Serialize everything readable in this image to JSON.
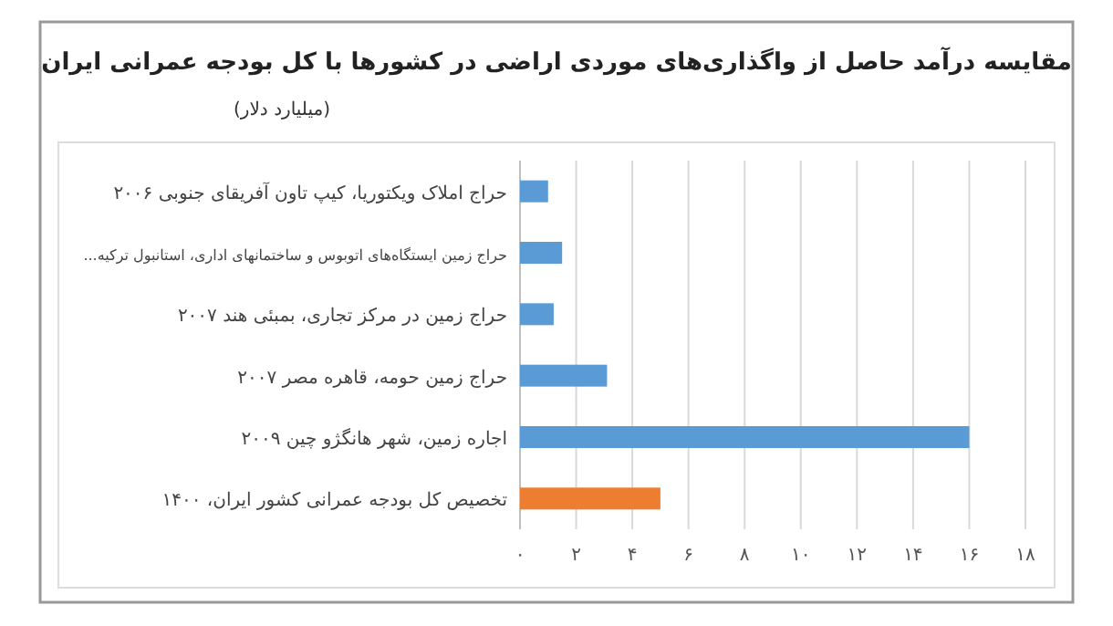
{
  "chart_data": {
    "type": "bar",
    "orientation": "horizontal",
    "title": "مقایسه درآمد حاصل از واگذاری‌های موردی اراضی در کشورها با کل بودجه عمرانی ایران",
    "subtitle": "(میلیارد دلار)",
    "categories": [
      "حراج املاک ویکتوریا، کیپ تاون آفریقای جنوبی ۲۰۰۶",
      "حراج زمین ایستگاه‌های اتوبوس و ساختمانهای اداری، استانبول ترکیه...",
      "حراج زمین در مرکز تجاری، بمبئی هند ۲۰۰۷",
      "حراج زمین حومه، قاهره مصر ۲۰۰۷",
      "اجاره زمین، شهر هانگژو چین ۲۰۰۹",
      "تخصیص کل بودجه عمرانی کشور ایران، ۱۴۰۰"
    ],
    "values": [
      1.0,
      1.5,
      1.2,
      3.1,
      16.0,
      5.0
    ],
    "colors": [
      "#5b9bd5",
      "#5b9bd5",
      "#5b9bd5",
      "#5b9bd5",
      "#5b9bd5",
      "#ed7d31"
    ],
    "xlim": [
      0,
      18
    ],
    "xticks": [
      {
        "value": 0,
        "label": "۰"
      },
      {
        "value": 2,
        "label": "۲"
      },
      {
        "value": 4,
        "label": "۴"
      },
      {
        "value": 6,
        "label": "۶"
      },
      {
        "value": 8,
        "label": "۸"
      },
      {
        "value": 10,
        "label": "۱۰"
      },
      {
        "value": 12,
        "label": "۱۲"
      },
      {
        "value": 14,
        "label": "۱۴"
      },
      {
        "value": 16,
        "label": "۱۶"
      },
      {
        "value": 18,
        "label": "۱۸"
      }
    ],
    "grid": "x"
  }
}
